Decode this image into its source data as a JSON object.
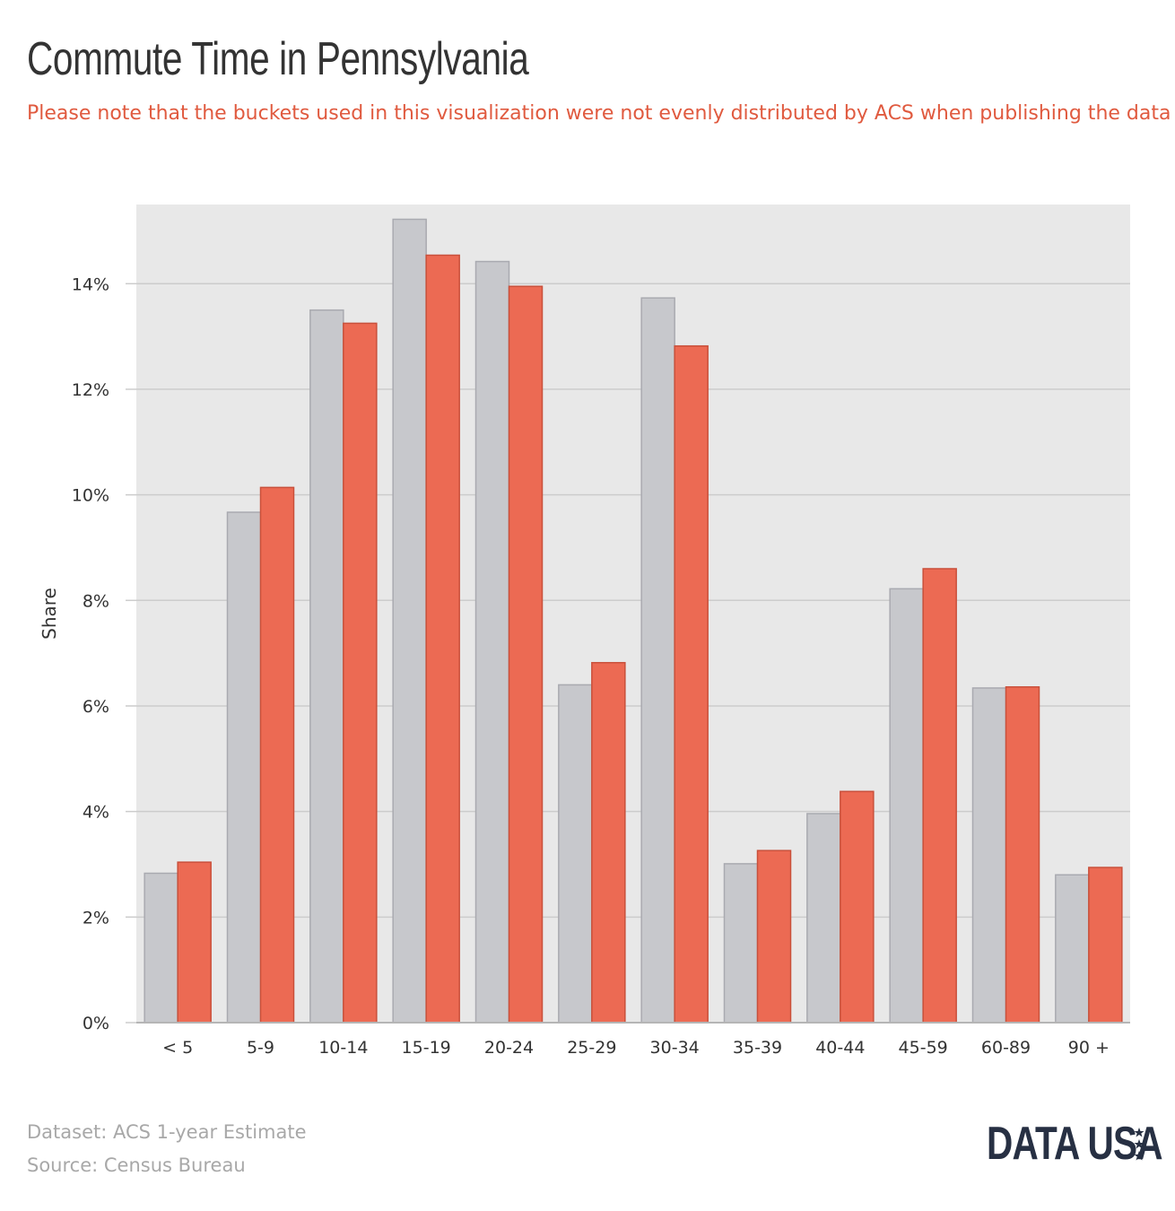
{
  "title": "Commute Time in Pennsylvania",
  "subtitle": "Please note that the buckets used in this visualization were not evenly distributed by ACS when publishing the data",
  "footer": {
    "dataset": "Dataset: ACS 1-year Estimate",
    "source": "Source: Census Bureau"
  },
  "logo": {
    "text": "DATA USA"
  },
  "colors": {
    "background": "#ffffff",
    "plot_background": "#e8e8e8",
    "gridline": "#cccccc",
    "series_gray": "#c7c8cc",
    "series_gray_stroke": "#a9aab0",
    "series_red": "#ec6a53",
    "series_red_stroke": "#c9503b",
    "title": "#333333",
    "subtitle": "#e05a3f",
    "footer": "#a8a8a8",
    "logo": "#273043"
  },
  "chart_data": {
    "type": "bar",
    "title": "Commute Time in Pennsylvania",
    "subtitle": "Please note that the buckets used in this visualization were not evenly distributed by ACS when publishing the data",
    "xlabel": "",
    "ylabel": "Share",
    "ylim": [
      0,
      15.5
    ],
    "yticks": [
      0,
      2,
      4,
      6,
      8,
      10,
      12,
      14
    ],
    "ytick_labels": [
      "0%",
      "2%",
      "4%",
      "6%",
      "8%",
      "10%",
      "12%",
      "14%"
    ],
    "grid": true,
    "legend": "none",
    "categories": [
      "< 5",
      "5-9",
      "10-14",
      "15-19",
      "20-24",
      "25-29",
      "30-34",
      "35-39",
      "40-44",
      "45-59",
      "60-89",
      "90 +"
    ],
    "series": [
      {
        "color": "#c7c8cc",
        "values": [
          2.83,
          9.67,
          13.5,
          15.22,
          14.42,
          6.4,
          13.73,
          3.01,
          3.96,
          8.22,
          6.34,
          2.8
        ]
      },
      {
        "color": "#ec6a53",
        "values": [
          3.04,
          10.14,
          13.25,
          14.54,
          13.95,
          6.82,
          12.82,
          3.26,
          4.38,
          8.6,
          6.36,
          2.94
        ]
      }
    ]
  }
}
